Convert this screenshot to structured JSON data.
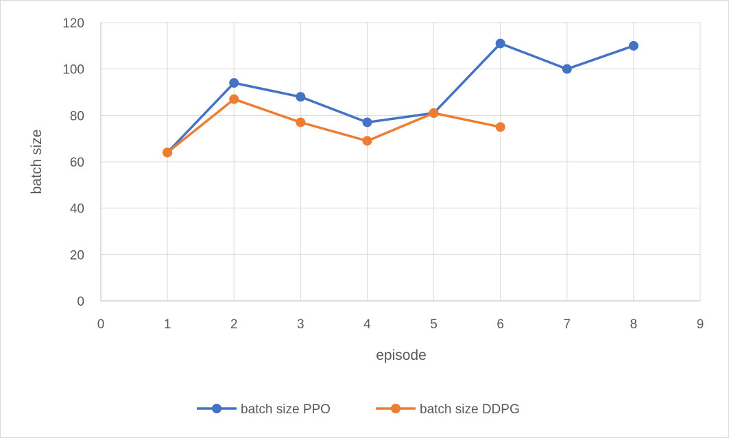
{
  "chart_data": {
    "type": "scatter",
    "title": "",
    "xlabel": "episode",
    "ylabel": "batch size",
    "xlim": [
      0,
      9
    ],
    "ylim": [
      0,
      120
    ],
    "x_ticks": [
      0,
      1,
      2,
      3,
      4,
      5,
      6,
      7,
      8,
      9
    ],
    "y_ticks": [
      0,
      20,
      40,
      60,
      80,
      100,
      120
    ],
    "grid": true,
    "legend_position": "bottom",
    "series": [
      {
        "name": "batch size PPO",
        "color": "#4472c4",
        "marker": "circle",
        "line": true,
        "x": [
          1,
          2,
          3,
          4,
          5,
          6,
          7,
          8
        ],
        "y": [
          64,
          94,
          88,
          77,
          81,
          111,
          100,
          110
        ]
      },
      {
        "name": "batch size DDPG",
        "color": "#ed7d31",
        "marker": "circle",
        "line": true,
        "x": [
          1,
          2,
          3,
          4,
          5,
          6
        ],
        "y": [
          64,
          87,
          77,
          69,
          81,
          75
        ]
      }
    ]
  }
}
